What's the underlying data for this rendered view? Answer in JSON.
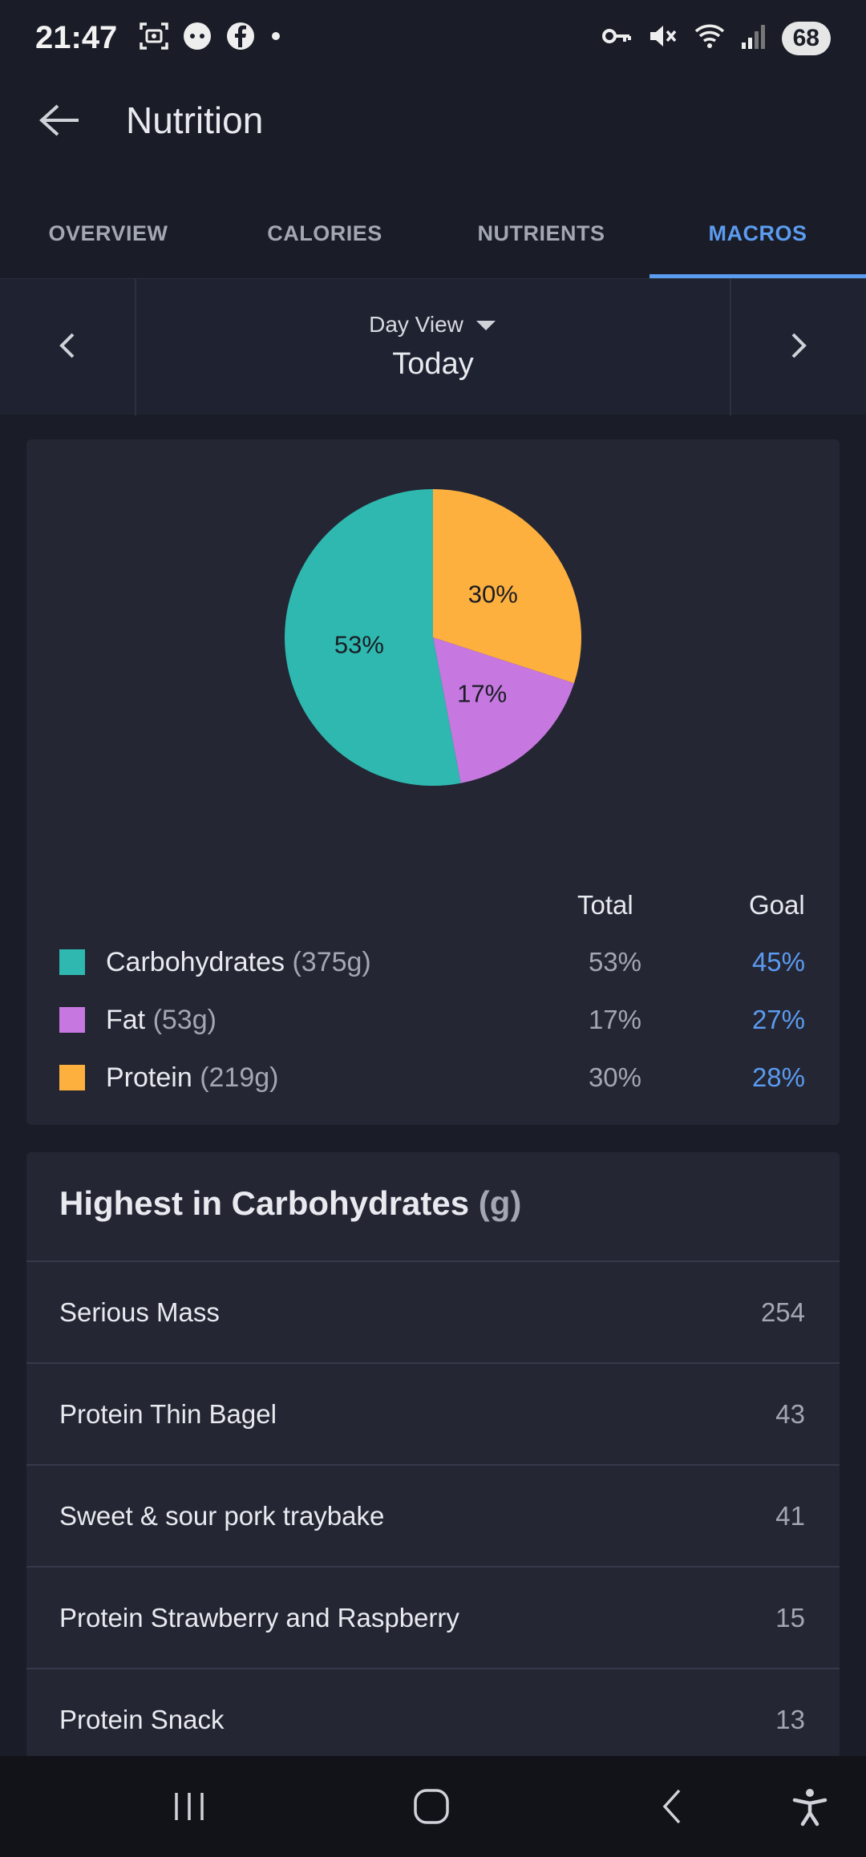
{
  "status_bar": {
    "time": "21:47",
    "battery": "68",
    "left_icons": [
      "screenshot-icon",
      "discord-icon",
      "facebook-icon",
      "dot-icon"
    ],
    "right_icons": [
      "vpn-key-icon",
      "mute-icon",
      "wifi-icon",
      "signal-icon"
    ]
  },
  "app_bar": {
    "title": "Nutrition"
  },
  "tabs": [
    {
      "label": "OVERVIEW",
      "active": false
    },
    {
      "label": "CALORIES",
      "active": false
    },
    {
      "label": "NUTRIENTS",
      "active": false
    },
    {
      "label": "MACROS",
      "active": true
    }
  ],
  "day_nav": {
    "view_label": "Day View",
    "day_label": "Today"
  },
  "colors": {
    "carbs": "#2eb8b0",
    "fat": "#c678e0",
    "protein": "#fdb03e",
    "accent": "#5b9bf0"
  },
  "chart_data": {
    "type": "pie",
    "categories": [
      "Carbohydrates",
      "Fat",
      "Protein"
    ],
    "values": [
      53,
      17,
      30
    ],
    "labels": [
      "53%",
      "17%",
      "30%"
    ],
    "colors": [
      "#2eb8b0",
      "#c678e0",
      "#fdb03e"
    ]
  },
  "macro_table": {
    "headers": {
      "total": "Total",
      "goal": "Goal"
    },
    "rows": [
      {
        "name": "Carbohydrates",
        "grams": "(375g)",
        "total": "53%",
        "goal": "45%",
        "color": "#2eb8b0"
      },
      {
        "name": "Fat",
        "grams": "(53g)",
        "total": "17%",
        "goal": "27%",
        "color": "#c678e0"
      },
      {
        "name": "Protein",
        "grams": "(219g)",
        "total": "30%",
        "goal": "28%",
        "color": "#fdb03e"
      }
    ]
  },
  "highest": {
    "title": "Highest in Carbohydrates",
    "unit": "(g)",
    "items": [
      {
        "name": "Serious Mass",
        "value": "254"
      },
      {
        "name": "Protein Thin Bagel",
        "value": "43"
      },
      {
        "name": "Sweet & sour pork traybake",
        "value": "41"
      },
      {
        "name": "Protein Strawberry and Raspberry",
        "value": "15"
      },
      {
        "name": "Protein Snack",
        "value": "13"
      }
    ]
  },
  "nav_bar": {
    "buttons": [
      "recents-icon",
      "home-icon",
      "back-icon",
      "accessibility-icon"
    ]
  }
}
